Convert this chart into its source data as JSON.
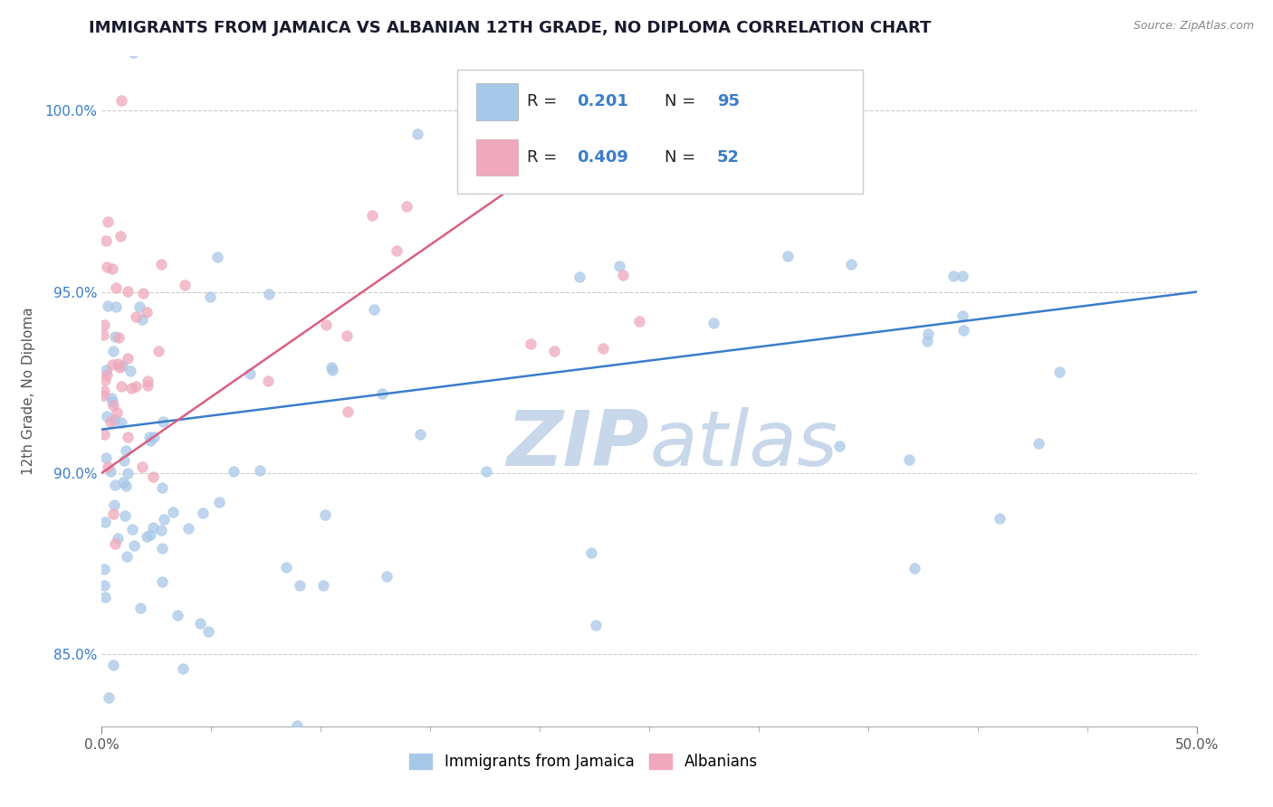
{
  "title": "IMMIGRANTS FROM JAMAICA VS ALBANIAN 12TH GRADE, NO DIPLOMA CORRELATION CHART",
  "source_text": "Source: ZipAtlas.com",
  "ylabel": "12th Grade, No Diploma",
  "xlim": [
    0.0,
    50.0
  ],
  "ylim": [
    83.0,
    101.5
  ],
  "ytick_values": [
    85.0,
    90.0,
    95.0,
    100.0
  ],
  "xtick_values": [
    0.0,
    50.0
  ],
  "legend_blue_label": "Immigrants from Jamaica",
  "legend_pink_label": "Albanians",
  "R_blue": 0.201,
  "N_blue": 95,
  "R_pink": 0.409,
  "N_pink": 52,
  "blue_color": "#a8c8e8",
  "pink_color": "#f0a8bc",
  "blue_line_color": "#3a7dc9",
  "pink_line_color": "#d96080",
  "watermark_zip_color": "#c8d8ea",
  "watermark_atlas_color": "#c8d8ea",
  "background_color": "#ffffff",
  "title_fontsize": 13,
  "axis_label_fontsize": 11,
  "tick_fontsize": 11,
  "blue_trend_x0": 0.0,
  "blue_trend_y0": 91.2,
  "blue_trend_x1": 50.0,
  "blue_trend_y1": 95.0,
  "pink_trend_x0": 0.0,
  "pink_trend_y0": 90.0,
  "pink_trend_x1": 25.0,
  "pink_trend_y1": 100.5
}
